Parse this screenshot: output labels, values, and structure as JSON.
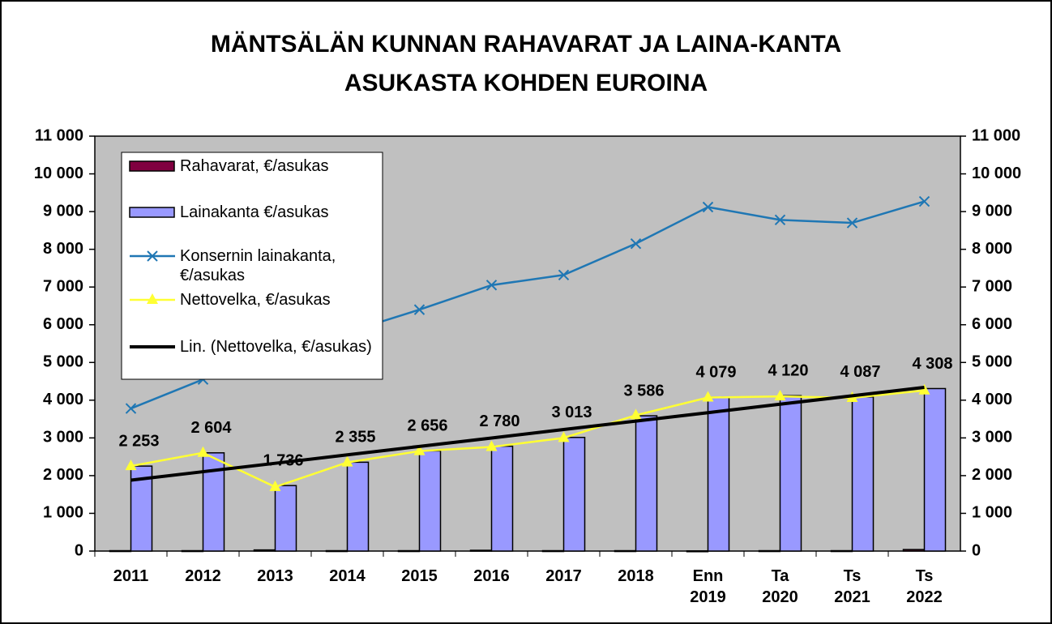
{
  "chart_data": {
    "type": "bar-line",
    "title": [
      "MÄNTSÄLÄN KUNNAN RAHAVARAT JA LAINA-KANTA",
      "ASUKASTA KOHDEN EUROINA"
    ],
    "categories": [
      "2011",
      "2012",
      "2013",
      "2014",
      "2015",
      "2016",
      "2017",
      "2018",
      "Enn 2019",
      "Ta 2020",
      "Ts 2021",
      "Ts 2022"
    ],
    "series": [
      {
        "name": "Rahavarat, €/asukas",
        "kind": "bar",
        "color": "#800040",
        "values": [
          10,
          10,
          30,
          10,
          10,
          20,
          10,
          10,
          5,
          10,
          10,
          40
        ]
      },
      {
        "name": "Lainakanta €/asukas",
        "kind": "bar",
        "color": "#9999ff",
        "values": [
          2253,
          2604,
          1736,
          2355,
          2656,
          2780,
          3013,
          3586,
          4079,
          4120,
          4087,
          4308
        ],
        "value_labels": [
          "2 253",
          "2 604",
          "1 736",
          "2 355",
          "2 656",
          "2 780",
          "3 013",
          "3 586",
          "4 079",
          "4 120",
          "4 087",
          "4 308"
        ]
      },
      {
        "name": "Konsernin lainakanta, €/asukas",
        "kind": "line",
        "marker": "x",
        "color": "#1f77b4",
        "values": [
          3780,
          4550,
          5200,
          5800,
          6400,
          7050,
          7320,
          8150,
          9120,
          8780,
          8700,
          9270
        ]
      },
      {
        "name": "Nettovelka, €/asukas",
        "kind": "line",
        "marker": "triangle",
        "color": "#ffff33",
        "values": [
          2253,
          2604,
          1700,
          2350,
          2650,
          2760,
          3000,
          3600,
          4070,
          4100,
          4060,
          4260
        ]
      },
      {
        "name": "Lin. (Nettovelka, €/asukas)",
        "kind": "trend",
        "color": "#000000",
        "values": [
          1880,
          2104,
          2327,
          2551,
          2775,
          2998,
          3222,
          3445,
          3669,
          3893,
          4116,
          4340
        ]
      }
    ],
    "ylim": [
      0,
      11000
    ],
    "yticks": [
      0,
      {
        "value": 1000,
        "label": "1 000"
      },
      {
        "value": 2000,
        "label": "2 000"
      },
      {
        "value": 3000,
        "label": "3 000"
      },
      {
        "value": 4000,
        "label": "4 000"
      },
      {
        "value": 5000,
        "label": "5 000"
      },
      {
        "value": 6000,
        "label": "6 000"
      },
      {
        "value": 7000,
        "label": "7 000"
      },
      {
        "value": 8000,
        "label": "8 000"
      },
      {
        "value": 9000,
        "label": "9 000"
      },
      {
        "value": 10000,
        "label": "10 000"
      },
      {
        "value": 11000,
        "label": "11 000"
      }
    ],
    "y2lim": [
      0,
      11000
    ],
    "y2ticks": [
      0,
      {
        "value": 1000,
        "label": "1 000"
      },
      {
        "value": 2000,
        "label": "2 000"
      },
      {
        "value": 3000,
        "label": "3 000"
      },
      {
        "value": 4000,
        "label": "4 000"
      },
      {
        "value": 5000,
        "label": "5 000"
      },
      {
        "value": 6000,
        "label": "6 000"
      },
      {
        "value": 7000,
        "label": "7 000"
      },
      {
        "value": 8000,
        "label": "8 000"
      },
      {
        "value": 9000,
        "label": "9 000"
      },
      {
        "value": 10000,
        "label": "10 000"
      },
      {
        "value": 11000,
        "label": "11 000"
      }
    ],
    "grid": false,
    "legend": "upper left"
  }
}
